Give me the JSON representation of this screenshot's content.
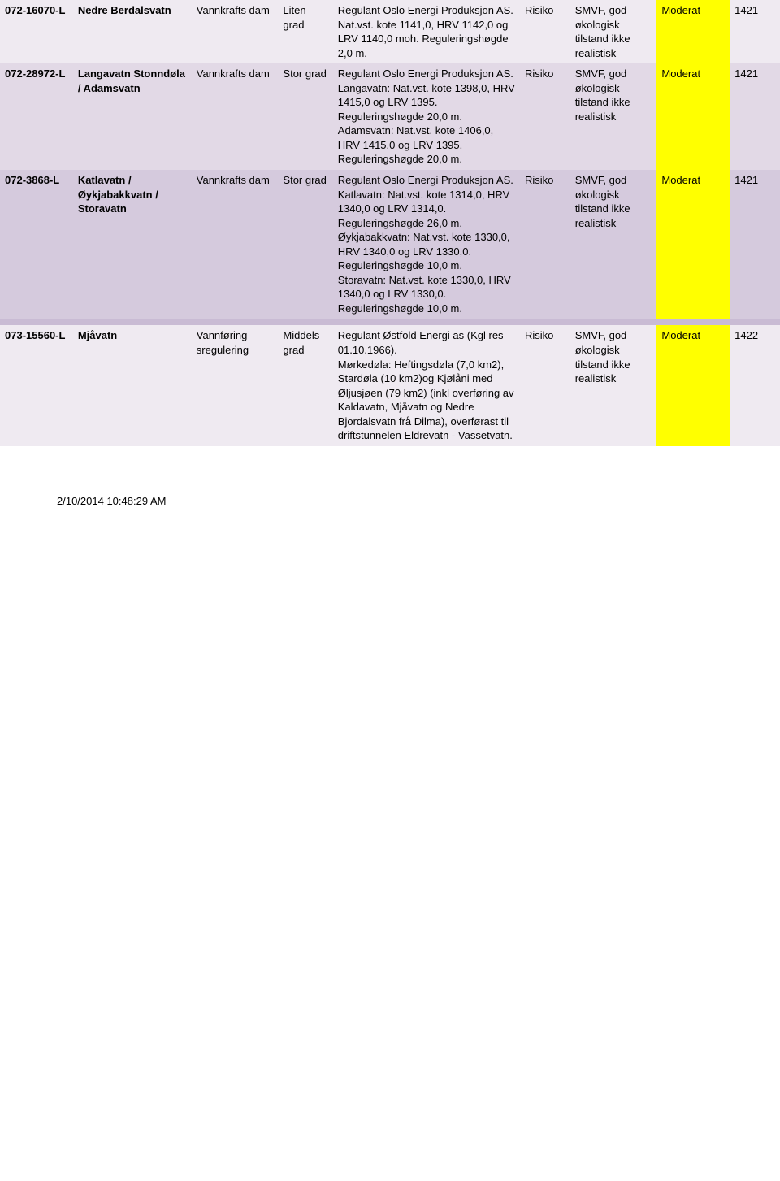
{
  "rows": [
    {
      "shade": "row-shade-a",
      "code": "072-16070-L",
      "name": "Nedre Berdalsvatn",
      "type": "Vannkrafts dam",
      "grade": "Liten grad",
      "desc": "Regulant Oslo Energi Produksjon AS.\nNat.vst. kote 1141,0, HRV 1142,0 og LRV 1140,0 moh. Reguleringshøgde 2,0 m.",
      "risk": "Risiko",
      "status": "SMVF, god økologisk tilstand ikke realistisk",
      "rating": "Moderat",
      "num": "1421"
    },
    {
      "shade": "row-shade-b",
      "code": "072-28972-L",
      "name": "Langavatn Stonndøla / Adamsvatn",
      "type": "Vannkrafts dam",
      "grade": "Stor grad",
      "desc": "Regulant Oslo Energi Produksjon AS.\nLangavatn: Nat.vst. kote 1398,0, HRV 1415,0 og LRV 1395. Reguleringshøgde 20,0 m.\nAdamsvatn: Nat.vst. kote 1406,0, HRV 1415,0 og LRV 1395. Reguleringshøgde 20,0 m.",
      "risk": "Risiko",
      "status": "SMVF, god økologisk tilstand ikke realistisk",
      "rating": "Moderat",
      "num": "1421"
    },
    {
      "shade": "row-shade-c",
      "code": "072-3868-L",
      "name": "Katlavatn / Øykjabakkvatn / Storavatn",
      "type": "Vannkrafts dam",
      "grade": "Stor grad",
      "desc": "Regulant Oslo Energi Produksjon AS.\nKatlavatn: Nat.vst. kote 1314,0, HRV 1340,0 og LRV 1314,0. Reguleringshøgde 26,0 m.\nØykjabakkvatn: Nat.vst. kote 1330,0, HRV 1340,0 og LRV 1330,0. Reguleringshøgde 10,0 m.\nStoravatn: Nat.vst. kote 1330,0, HRV 1340,0 og LRV 1330,0. Reguleringshøgde 10,0 m.",
      "risk": "Risiko",
      "status": "SMVF, god økologisk tilstand ikke realistisk",
      "rating": "Moderat",
      "num": "1421"
    },
    {
      "shade": "row-shade-d",
      "code": "",
      "name": "",
      "type": "",
      "grade": "",
      "desc": "",
      "risk": "",
      "status": "",
      "rating": "",
      "num": ""
    },
    {
      "shade": "row-shade-e",
      "code": "073-15560-L",
      "name": "Mjåvatn",
      "type": "Vannføring sregulering",
      "grade": "Middels grad",
      "desc": "Regulant Østfold Energi as (Kgl res 01.10.1966).\nMørkedøla: Heftingsdøla (7,0 km2), Stardøla (10 km2)og Kjølåni med Øljusjøen (79 km2) (inkl overføring av Kaldavatn, Mjåvatn og Nedre Bjordalsvatn frå Dilma), overførast til driftstunnelen Eldrevatn - Vassetvatn.",
      "risk": "Risiko",
      "status": "SMVF, god økologisk tilstand ikke realistisk",
      "rating": "Moderat",
      "num": "1422"
    }
  ],
  "footer": "2/10/2014 10:48:29 AM",
  "colors": {
    "highlight": "#ffff00",
    "shade_a": "#efeaf1",
    "shade_b": "#e2d9e6",
    "shade_c": "#d5cadd",
    "shade_d": "#c9bbd4"
  }
}
